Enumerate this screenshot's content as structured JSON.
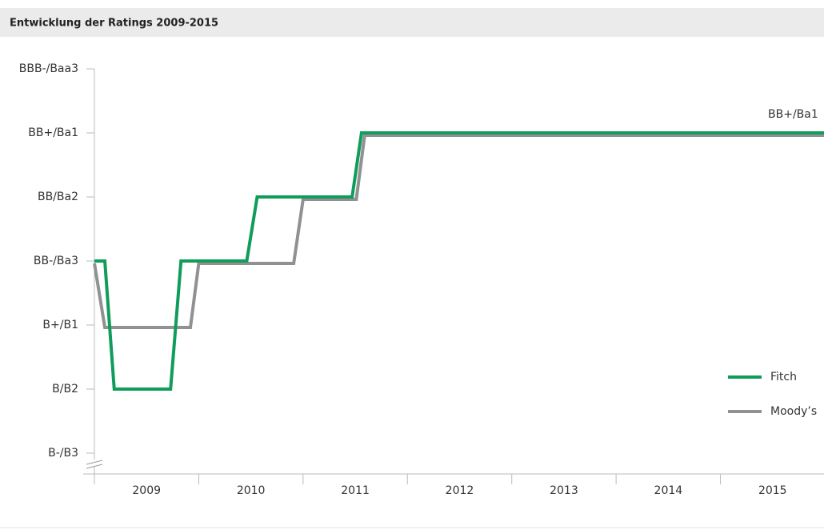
{
  "chart_data": {
    "type": "line",
    "title": "Entwicklung der Ratings 2009-2015",
    "annotation": "BB+/Ba1",
    "xlim": [
      2009,
      2016
    ],
    "xticks": [
      2009,
      2010,
      2011,
      2012,
      2013,
      2014,
      2015
    ],
    "ylim": [
      1,
      7
    ],
    "yticks": [
      {
        "value": 1,
        "label": "B-/B3"
      },
      {
        "value": 2,
        "label": "B/B2"
      },
      {
        "value": 3,
        "label": "B+/B1"
      },
      {
        "value": 4,
        "label": "BB-/Ba3"
      },
      {
        "value": 5,
        "label": "BB/Ba2"
      },
      {
        "value": 6,
        "label": "BB+/Ba1"
      },
      {
        "value": 7,
        "label": "BBB-/Baa3"
      }
    ],
    "series": [
      {
        "name": "Fitch",
        "color": "#109c5a",
        "x": [
          2009.0,
          2009.1,
          2009.19,
          2009.73,
          2009.83,
          2010.46,
          2010.56,
          2011.47,
          2011.56,
          2016.0
        ],
        "values": [
          4,
          4,
          2,
          2,
          4,
          4,
          5,
          5,
          6,
          6
        ]
      },
      {
        "name": "Moody’s",
        "color": "#8f9193",
        "x": [
          2009.0,
          2009.1,
          2009.92,
          2010.0,
          2010.91,
          2011.0,
          2011.51,
          2011.59,
          2016.0
        ],
        "values": [
          4,
          3,
          3,
          4,
          4,
          5,
          5,
          6,
          6
        ]
      }
    ]
  }
}
